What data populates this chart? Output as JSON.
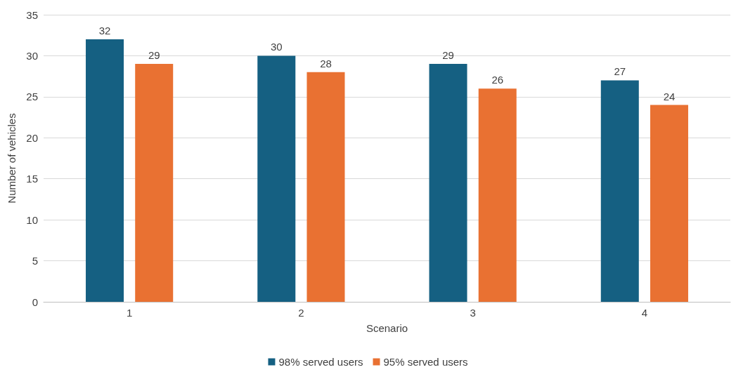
{
  "chart_data": {
    "type": "bar",
    "xlabel": "Scenario",
    "ylabel": "Number of vehicles",
    "categories": [
      "1",
      "2",
      "3",
      "4"
    ],
    "series": [
      {
        "name": "98% served users",
        "color": "#156082",
        "values": [
          32,
          30,
          29,
          27
        ]
      },
      {
        "name": "95% served users",
        "color": "#e97132",
        "values": [
          29,
          28,
          26,
          24
        ]
      }
    ],
    "ylim": [
      0,
      35
    ],
    "yticks": [
      0,
      5,
      10,
      15,
      20,
      25,
      30,
      35
    ],
    "grid": "y",
    "legend": "bottom",
    "data_labels": true
  }
}
